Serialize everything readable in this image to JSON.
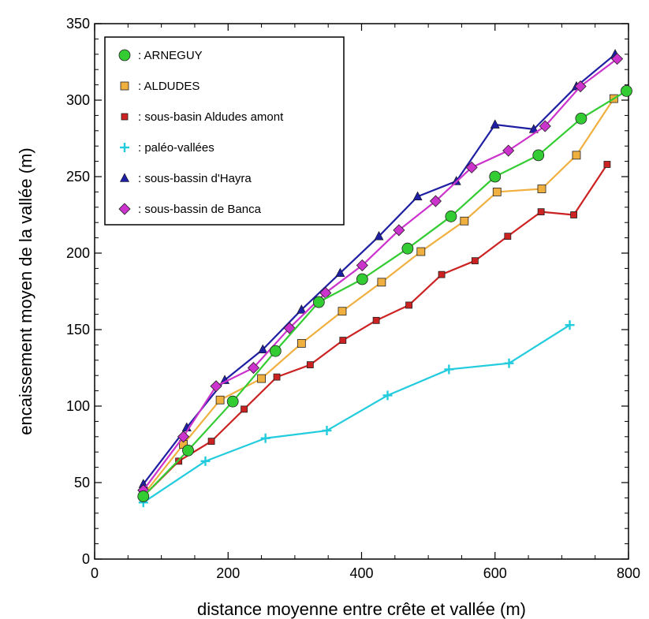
{
  "chart_data": {
    "type": "line",
    "xlabel": "distance moyenne entre crête et vallée (m)",
    "ylabel": "encaissement moyen de la vallée (m)",
    "xlim": [
      0,
      800
    ],
    "ylim": [
      0,
      350
    ],
    "x_ticks": [
      0,
      200,
      400,
      600,
      800
    ],
    "y_ticks": [
      0,
      50,
      100,
      150,
      200,
      250,
      300,
      350
    ],
    "grid": false,
    "legend_position": "top-left",
    "series": [
      {
        "name": ": ARNEGUY",
        "marker": "circle",
        "color": "#33cc33",
        "x": [
          73,
          140,
          207,
          271,
          336,
          401,
          469,
          534,
          600,
          665,
          729,
          797
        ],
        "y": [
          41,
          71,
          103,
          136,
          168,
          183,
          203,
          224,
          250,
          264,
          288,
          306
        ]
      },
      {
        "name": ": ALDUDES",
        "marker": "square",
        "color": "#f0b040",
        "x": [
          73,
          133,
          188,
          250,
          310,
          371,
          430,
          489,
          554,
          603,
          670,
          722,
          778
        ],
        "y": [
          42,
          75,
          104,
          118,
          141,
          162,
          181,
          201,
          221,
          240,
          242,
          264,
          301
        ]
      },
      {
        "name": ": sous-basin Aldudes amont",
        "marker": "square",
        "color": "#cc2222",
        "x": [
          73,
          126,
          175,
          224,
          273,
          323,
          372,
          422,
          471,
          520,
          570,
          619,
          669,
          718,
          768
        ],
        "y": [
          41,
          64,
          77,
          98,
          119,
          127,
          143,
          156,
          166,
          186,
          195,
          211,
          227,
          225,
          258
        ]
      },
      {
        "name": ": paléo-vallées",
        "marker": "plus",
        "color": "#22ccdd",
        "x": [
          73,
          166,
          256,
          348,
          439,
          531,
          621,
          712
        ],
        "y": [
          37,
          64,
          79,
          84,
          107,
          124,
          128,
          153
        ]
      },
      {
        "name": ": sous-bassin d'Hayra",
        "marker": "triangle",
        "color": "#1f1fa3",
        "x": [
          73,
          138,
          195,
          252,
          310,
          368,
          426,
          484,
          542,
          600,
          658,
          722,
          780
        ],
        "y": [
          49,
          86,
          117,
          137,
          163,
          187,
          211,
          237,
          247,
          284,
          281,
          309,
          330
        ]
      },
      {
        "name": ": sous-bassin de Banca",
        "marker": "diamond",
        "color": "#cc33cc",
        "x": [
          73,
          133,
          182,
          238,
          292,
          346,
          401,
          456,
          511,
          565,
          620,
          675,
          728,
          783
        ],
        "y": [
          45,
          80,
          113,
          125,
          151,
          174,
          192,
          215,
          234,
          256,
          267,
          283,
          309,
          327
        ]
      }
    ]
  }
}
